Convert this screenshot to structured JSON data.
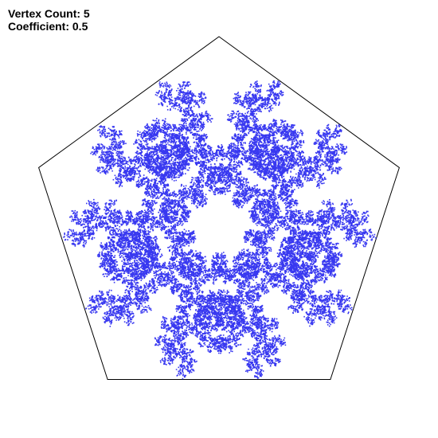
{
  "info": {
    "vertex_line": "Vertex Count: 5",
    "coefficient_line": "Coefficient: 0.5"
  },
  "params": {
    "vertex_count": 5,
    "coefficient": 0.5
  },
  "colors": {
    "background": "#ffffff",
    "polygon_stroke": "#000000",
    "points": "#3838f0",
    "text": "#000000"
  }
}
